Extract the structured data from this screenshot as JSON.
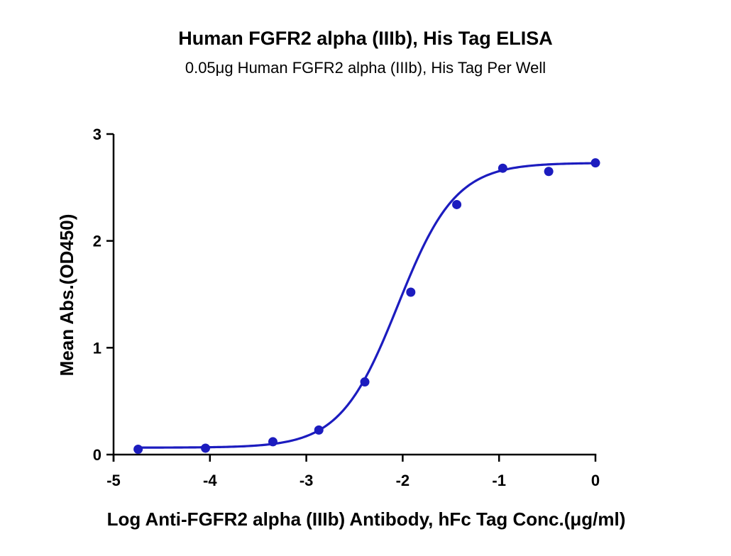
{
  "chart_data": {
    "type": "scatter",
    "title": "Human FGFR2 alpha (IIIb), His Tag ELISA",
    "subtitle": "0.05μg Human FGFR2 alpha (IIIb), His Tag Per Well",
    "xlabel": "Log Anti-FGFR2 alpha (IIIb) Antibody, hFc Tag Conc.(μg/ml)",
    "ylabel": "Mean Abs.(OD450)",
    "xlim": [
      -5,
      0
    ],
    "ylim": [
      0,
      3
    ],
    "x_ticks": [
      -5,
      -4,
      -3,
      -2,
      -1,
      0
    ],
    "x_tick_labels": [
      "-5",
      "-4",
      "-3",
      "-2",
      "-1",
      "0"
    ],
    "y_ticks": [
      0,
      1,
      2,
      3
    ],
    "y_tick_labels": [
      "0",
      "1",
      "2",
      "3"
    ],
    "grid": false,
    "legend": "none",
    "colors": {
      "series": "#1c1cbf",
      "axis": "#000000"
    },
    "series": [
      {
        "x": [
          -4.745,
          -4.046,
          -3.347,
          -2.87,
          -2.393,
          -1.916,
          -1.439,
          -0.962,
          -0.485,
          0.0
        ],
        "y": [
          0.05,
          0.06,
          0.12,
          0.23,
          0.68,
          1.52,
          2.34,
          2.68,
          2.65,
          2.73
        ],
        "fit": {
          "model": "4PL",
          "bottom": 0.065,
          "top": 2.73,
          "logEC50": -2.05,
          "hill": 1.45
        }
      }
    ]
  }
}
